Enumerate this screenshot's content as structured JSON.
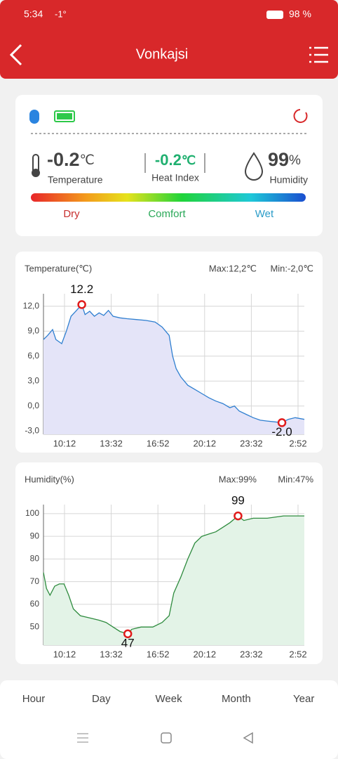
{
  "status_bar": {
    "time": "5:34",
    "temperature": "-1°",
    "battery": "98 %"
  },
  "header": {
    "title": "Vonkajsi"
  },
  "sensor": {
    "temperature": {
      "value": "-0.2",
      "unit": "℃",
      "label": "Temperature"
    },
    "heat_index": {
      "value": "-0.2",
      "unit": "℃",
      "label": "Heat Index"
    },
    "humidity": {
      "value": "99",
      "unit": "%",
      "label": "Humidity"
    },
    "scale": [
      "Dry",
      "Comfort",
      "Wet"
    ]
  },
  "charts": [
    {
      "type": "area",
      "title": "Temperature(℃)",
      "max_label": "Max:12,2℃",
      "min_label": "Min:-2,0℃",
      "color": "#2f7fd0",
      "fill": "#e4e4f8",
      "xlim": [
        522,
        1639
      ],
      "xticks": [
        {
          "value": 612,
          "label": "10:12"
        },
        {
          "value": 812,
          "label": "13:32"
        },
        {
          "value": 1012,
          "label": "16:52"
        },
        {
          "value": 1212,
          "label": "20:12"
        },
        {
          "value": 1412,
          "label": "23:32"
        },
        {
          "value": 1612,
          "label": "2:52"
        }
      ],
      "ylim": [
        -3.4,
        13.5
      ],
      "yticks": [
        {
          "value": -3,
          "label": "-3,0"
        },
        {
          "value": 0,
          "label": "0,0"
        },
        {
          "value": 3,
          "label": "3,0"
        },
        {
          "value": 6,
          "label": "6,0"
        },
        {
          "value": 9,
          "label": "9,0"
        },
        {
          "value": 12,
          "label": "12,0"
        }
      ],
      "grid": true,
      "x": [
        522,
        540,
        561,
        575,
        600,
        620,
        640,
        660,
        686,
        700,
        720,
        740,
        760,
        780,
        800,
        820,
        850,
        880,
        920,
        960,
        1000,
        1030,
        1060,
        1075,
        1090,
        1110,
        1140,
        1170,
        1200,
        1230,
        1260,
        1290,
        1320,
        1340,
        1360,
        1390,
        1420,
        1450,
        1480,
        1510,
        1543,
        1570,
        1600,
        1639
      ],
      "values": [
        8.0,
        8.5,
        9.2,
        8.0,
        7.5,
        9.0,
        10.8,
        11.4,
        12.2,
        11.0,
        11.4,
        10.8,
        11.2,
        10.9,
        11.5,
        10.8,
        10.6,
        10.5,
        10.4,
        10.3,
        10.1,
        9.5,
        8.5,
        6.0,
        4.5,
        3.5,
        2.5,
        2.0,
        1.5,
        1.0,
        0.6,
        0.3,
        -0.2,
        0.0,
        -0.6,
        -1.0,
        -1.4,
        -1.7,
        -1.8,
        -1.9,
        -2.0,
        -1.6,
        -1.4,
        -1.6
      ],
      "markers": {
        "x": [
          686,
          1543
        ],
        "values": [
          12.2,
          -2.0
        ],
        "value_labels": [
          "12.2",
          "-2.0"
        ]
      }
    },
    {
      "type": "area",
      "title": "Humidity(%)",
      "max_label": "Max:99%",
      "min_label": "Min:47%",
      "color": "#2e8b3e",
      "fill": "#e3f3e7",
      "xlim": [
        522,
        1639
      ],
      "xticks": [
        {
          "value": 612,
          "label": "10:12"
        },
        {
          "value": 812,
          "label": "13:32"
        },
        {
          "value": 1012,
          "label": "16:52"
        },
        {
          "value": 1212,
          "label": "20:12"
        },
        {
          "value": 1412,
          "label": "23:32"
        },
        {
          "value": 1612,
          "label": "2:52"
        }
      ],
      "ylim": [
        42,
        104
      ],
      "yticks": [
        50,
        60,
        70,
        80,
        90,
        100
      ],
      "grid": true,
      "x": [
        522,
        535,
        550,
        570,
        590,
        610,
        630,
        650,
        680,
        720,
        760,
        790,
        820,
        850,
        883,
        900,
        940,
        990,
        1030,
        1060,
        1080,
        1110,
        1140,
        1170,
        1200,
        1230,
        1260,
        1290,
        1320,
        1355,
        1380,
        1420,
        1480,
        1550,
        1639
      ],
      "values": [
        74,
        67,
        64,
        68,
        69,
        69,
        64,
        58,
        55,
        54,
        53,
        52,
        50,
        48,
        47,
        49,
        50,
        50,
        52,
        55,
        65,
        72,
        80,
        87,
        90,
        91,
        92,
        94,
        96,
        99,
        97,
        98,
        98,
        99,
        99
      ],
      "markers": {
        "x": [
          1355,
          883
        ],
        "values": [
          99,
          47
        ]
      }
    }
  ],
  "tabs": [
    "Hour",
    "Day",
    "Week",
    "Month",
    "Year"
  ]
}
